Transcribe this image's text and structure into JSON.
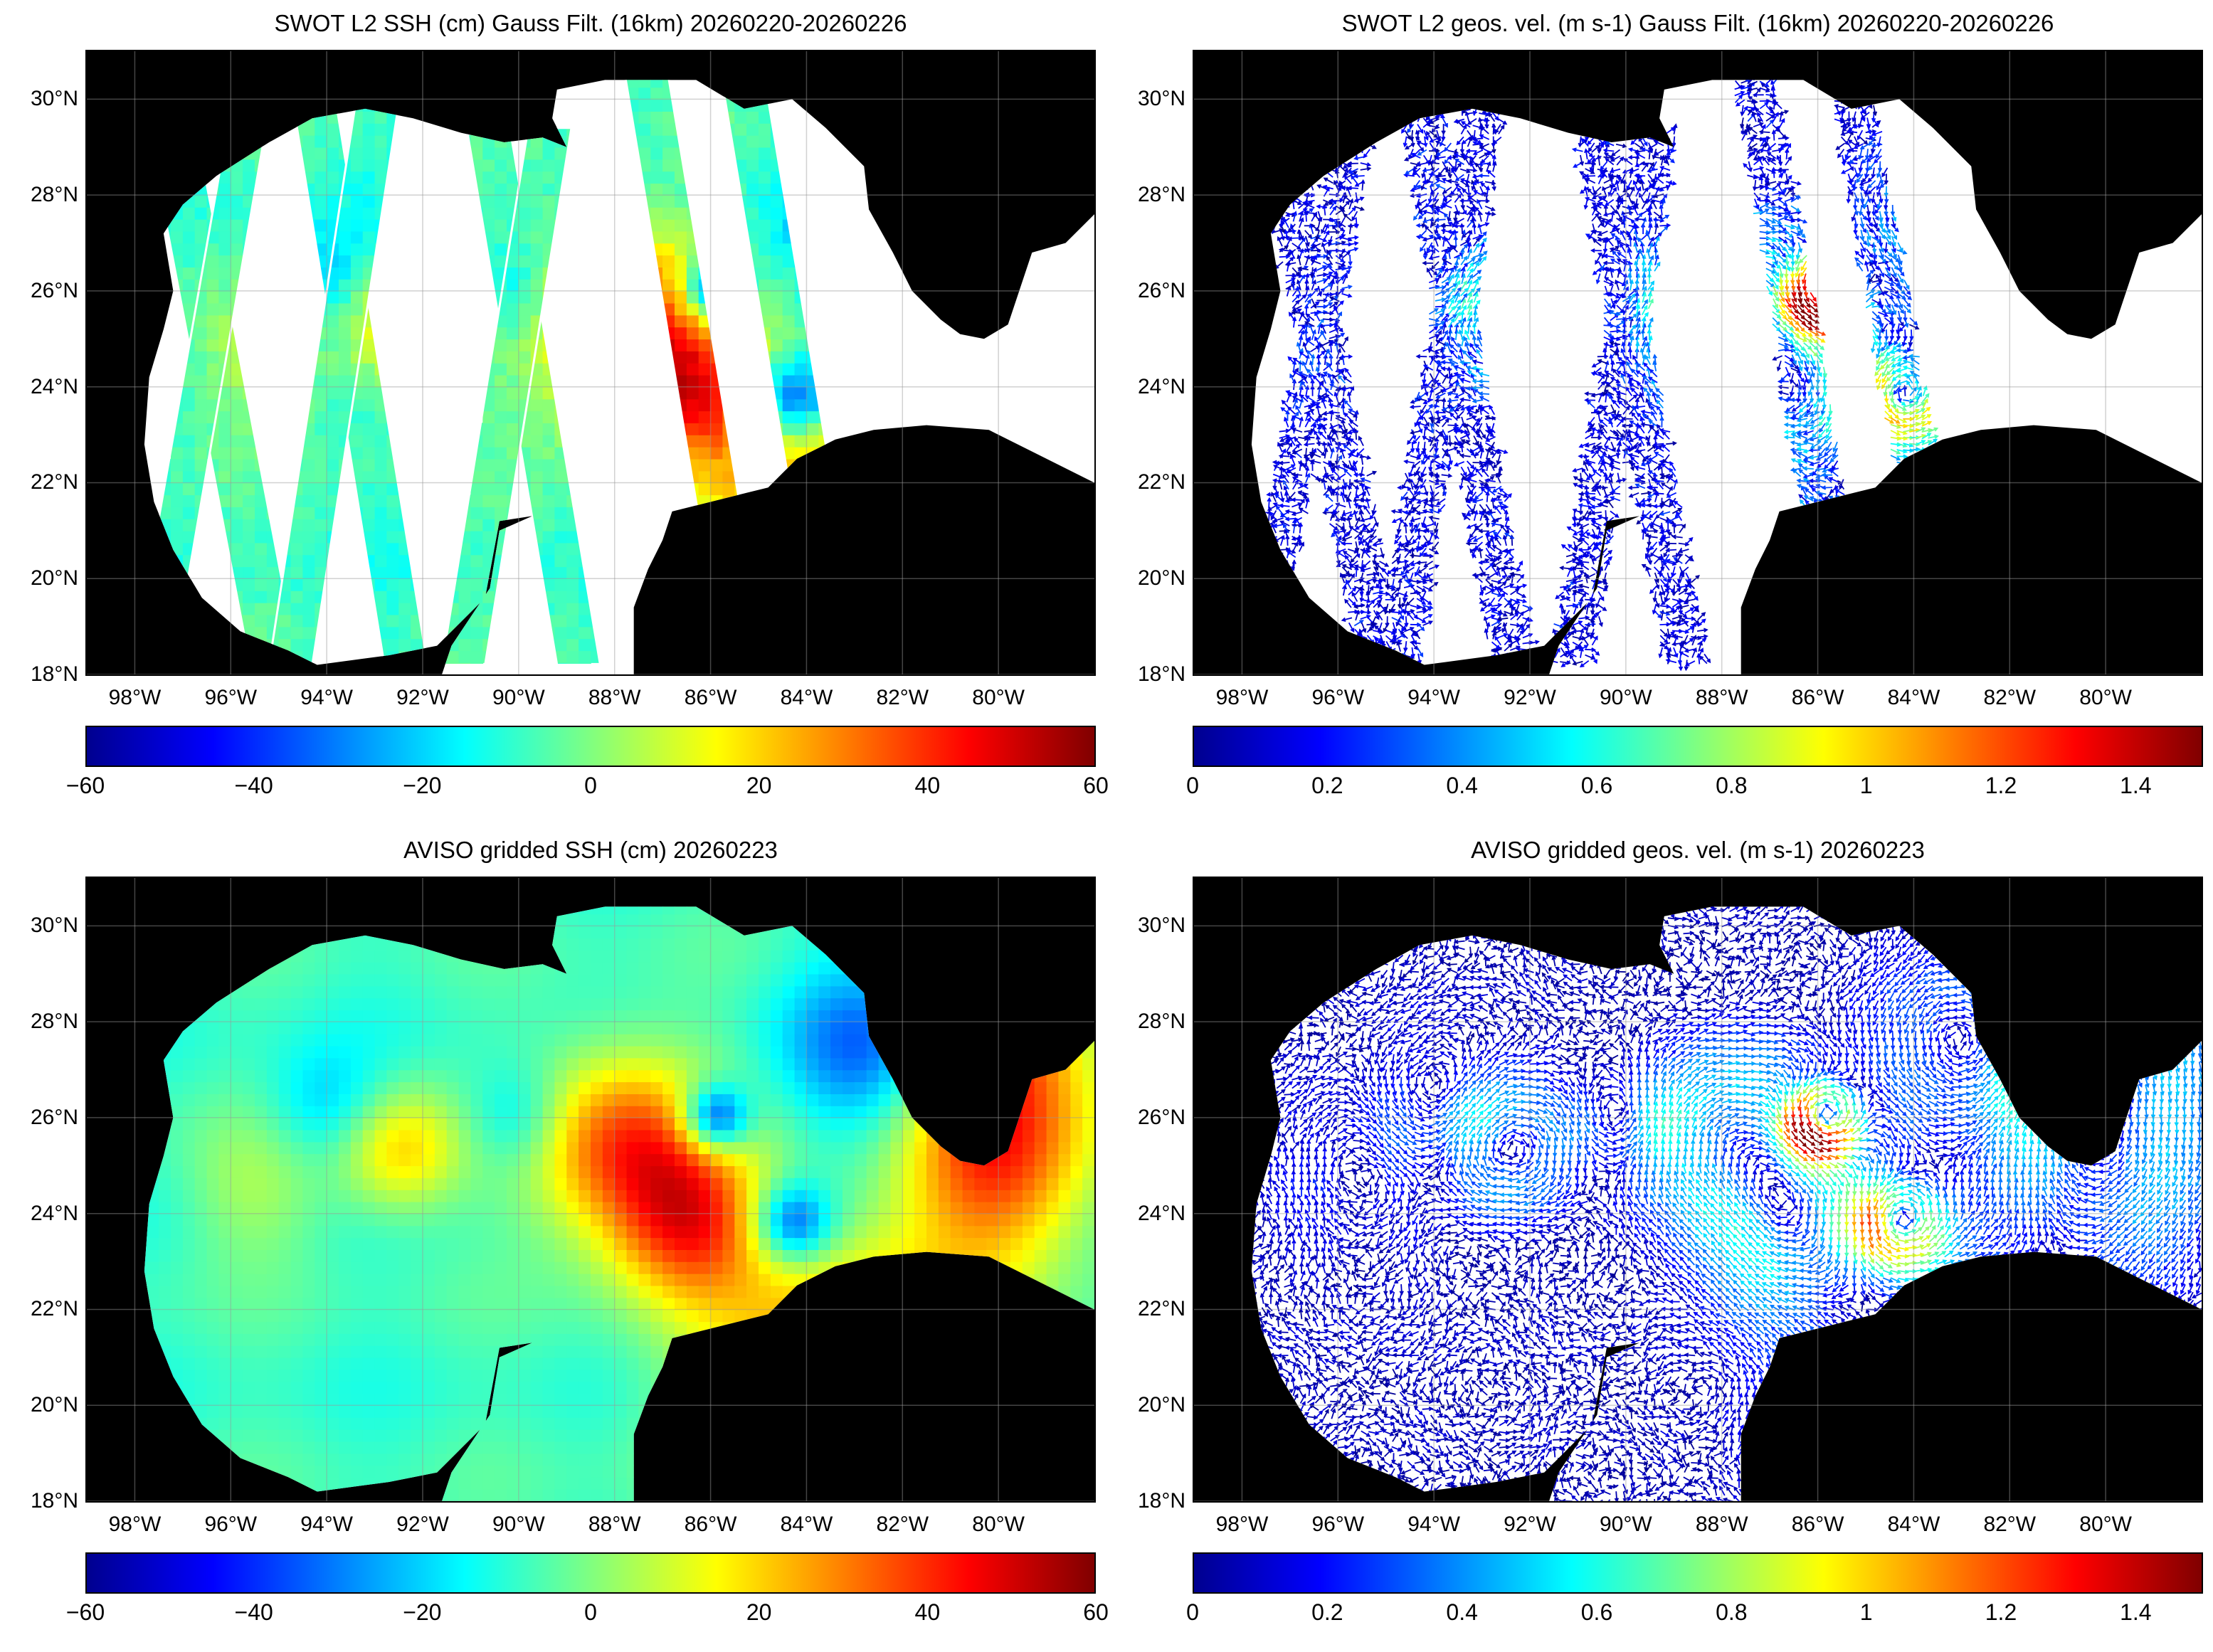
{
  "panels": [
    {
      "id": "swot-ssh",
      "title": "SWOT L2 SSH (cm) Gauss Filt. (16km) 20260220-20260226",
      "kind": "ssh-swath",
      "colorbar_ticks": [
        "−60",
        "−40",
        "−20",
        "0",
        "20",
        "40",
        "60"
      ],
      "colorbar_range": [
        -60,
        60
      ]
    },
    {
      "id": "swot-vel",
      "title": "SWOT L2 geos. vel. (m s-1) Gauss Filt. (16km) 20260220-20260226",
      "kind": "vel-swath",
      "colorbar_ticks": [
        "0",
        "0.2",
        "0.4",
        "0.6",
        "0.8",
        "1",
        "1.2",
        "1.4"
      ],
      "colorbar_range": [
        0,
        1.5
      ]
    },
    {
      "id": "aviso-ssh",
      "title": "AVISO gridded SSH (cm) 20260223",
      "kind": "ssh-grid",
      "colorbar_ticks": [
        "−60",
        "−40",
        "−20",
        "0",
        "20",
        "40",
        "60"
      ],
      "colorbar_range": [
        -60,
        60
      ]
    },
    {
      "id": "aviso-vel",
      "title": "AVISO gridded geos. vel. (m s-1)  20260223",
      "kind": "vel-grid",
      "colorbar_ticks": [
        "0",
        "0.2",
        "0.4",
        "0.6",
        "0.8",
        "1",
        "1.2",
        "1.4"
      ],
      "colorbar_range": [
        0,
        1.5
      ]
    }
  ],
  "lat_labels": [
    "30°N",
    "28°N",
    "26°N",
    "24°N",
    "22°N",
    "20°N",
    "18°N"
  ],
  "lon_labels": [
    "98°W",
    "96°W",
    "94°W",
    "92°W",
    "90°W",
    "88°W",
    "86°W",
    "84°W",
    "82°W",
    "80°W"
  ],
  "map_extent": {
    "lon_min": -99,
    "lon_max": -78,
    "lat_min": 18,
    "lat_max": 31
  },
  "colormap": [
    "#00008f",
    "#0000ff",
    "#0080ff",
    "#00ffff",
    "#80ff80",
    "#ffff00",
    "#ff8000",
    "#ff0000",
    "#800000"
  ],
  "land_color": "#000000",
  "ocean_nodata_color": "#ffffff"
}
